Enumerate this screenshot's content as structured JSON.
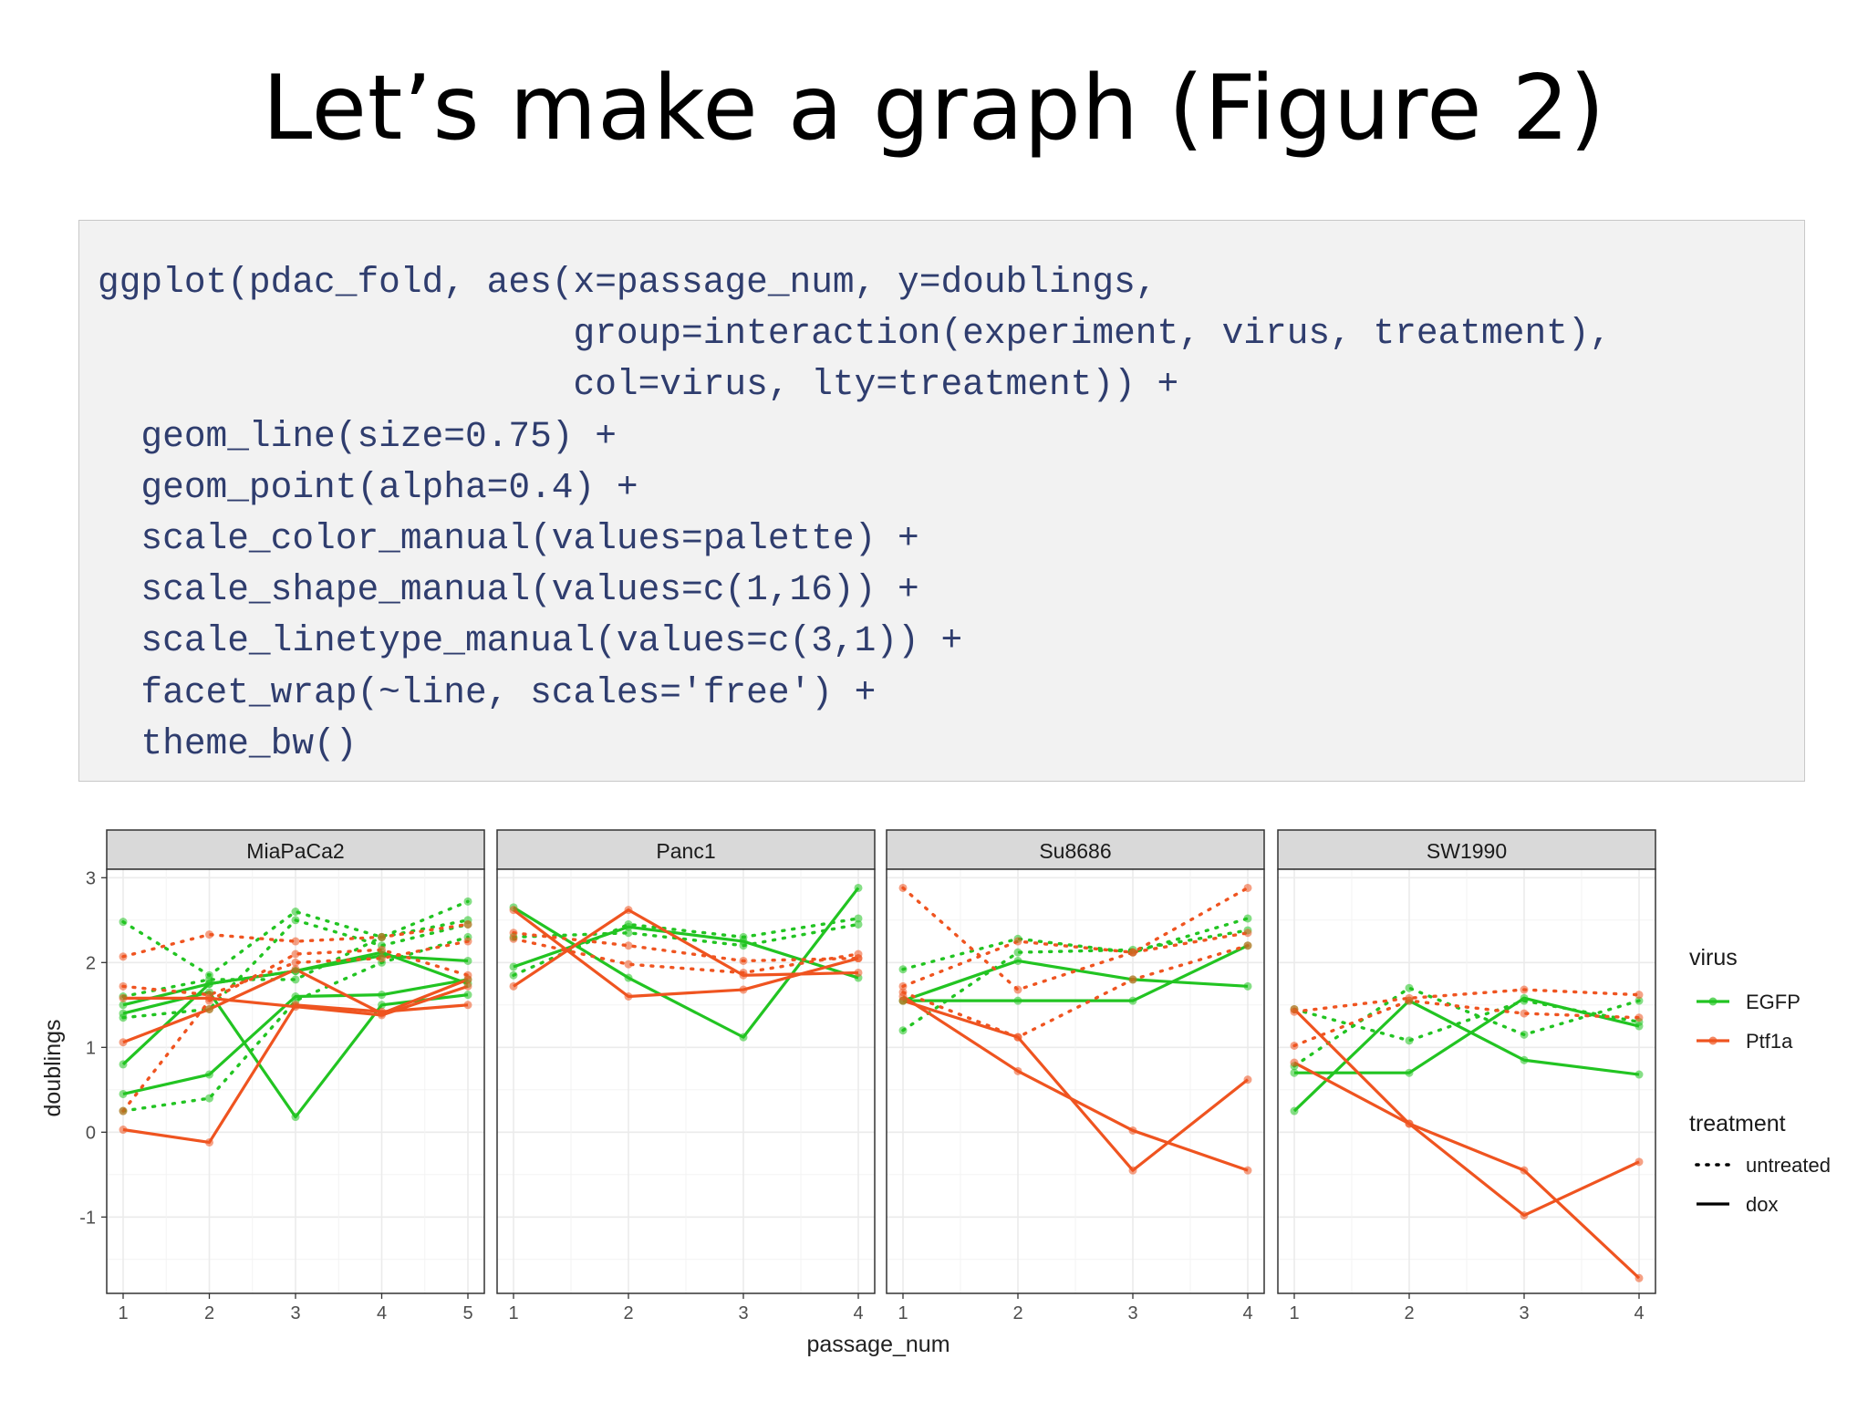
{
  "slide": {
    "title": "Let’s make a graph (Figure 2)",
    "code_lines": [
      "ggplot(pdac_fold, aes(x=passage_num, y=doublings,",
      "                      group=interaction(experiment, virus, treatment),",
      "                      col=virus, lty=treatment)) +",
      "  geom_line(size=0.75) +",
      "  geom_point(alpha=0.4) +",
      "  scale_color_manual(values=palette) +",
      "  scale_shape_manual(values=c(1,16)) +",
      "  scale_linetype_manual(values=c(3,1)) +",
      "  facet_wrap(~line, scales='free') +",
      "  theme_bw()"
    ]
  },
  "colors": {
    "EGFP": "#22c422",
    "Ptf1a": "#ef5420",
    "strip": "#d9d9d9",
    "grid": "#ebebeb"
  },
  "chart_data": {
    "type": "line",
    "xlabel": "passage_num",
    "ylabel": "doublings",
    "ylim": [
      -1.9,
      3.1
    ],
    "yticks": [
      -1,
      0,
      1,
      2,
      3
    ],
    "legend_placement": "right",
    "legend": {
      "color_title": "virus",
      "color_entries": [
        "EGFP",
        "Ptf1a"
      ],
      "linetype_title": "treatment",
      "linetype_entries": [
        "untreated",
        "dox"
      ]
    },
    "facets": [
      {
        "name": "MiaPaCa2",
        "x": [
          1,
          2,
          3,
          4,
          5
        ],
        "series": [
          {
            "virus": "EGFP",
            "treatment": "dox",
            "values": [
              0.45,
              0.68,
              1.6,
              1.62,
              1.8
            ]
          },
          {
            "virus": "EGFP",
            "treatment": "dox",
            "values": [
              1.4,
              1.65,
              0.18,
              1.5,
              1.62
            ]
          },
          {
            "virus": "EGFP",
            "treatment": "dox",
            "values": [
              0.8,
              1.75,
              1.9,
              2.12,
              1.75
            ]
          },
          {
            "virus": "EGFP",
            "treatment": "dox",
            "values": [
              1.5,
              1.75,
              1.9,
              2.08,
              2.02
            ]
          },
          {
            "virus": "EGFP",
            "treatment": "untreated",
            "values": [
              2.48,
              1.85,
              2.6,
              2.3,
              2.72
            ]
          },
          {
            "virus": "EGFP",
            "treatment": "untreated",
            "values": [
              0.25,
              0.4,
              1.55,
              2.0,
              2.3
            ]
          },
          {
            "virus": "EGFP",
            "treatment": "untreated",
            "values": [
              1.35,
              1.45,
              2.5,
              2.2,
              2.45
            ]
          },
          {
            "virus": "EGFP",
            "treatment": "untreated",
            "values": [
              1.6,
              1.8,
              1.8,
              2.3,
              2.5
            ]
          },
          {
            "virus": "Ptf1a",
            "treatment": "dox",
            "values": [
              0.03,
              -0.12,
              1.5,
              1.42,
              1.5
            ]
          },
          {
            "virus": "Ptf1a",
            "treatment": "dox",
            "values": [
              1.06,
              1.45,
              1.92,
              1.4,
              1.8
            ]
          },
          {
            "virus": "Ptf1a",
            "treatment": "dox",
            "values": [
              1.58,
              1.58,
              1.48,
              1.38,
              1.72
            ]
          },
          {
            "virus": "Ptf1a",
            "treatment": "untreated",
            "values": [
              2.07,
              2.33,
              2.25,
              2.3,
              2.45
            ]
          },
          {
            "virus": "Ptf1a",
            "treatment": "untreated",
            "values": [
              1.72,
              1.62,
              2.0,
              2.05,
              2.25
            ]
          },
          {
            "virus": "Ptf1a",
            "treatment": "untreated",
            "values": [
              0.25,
              1.55,
              2.1,
              2.15,
              1.85
            ]
          }
        ]
      },
      {
        "name": "Panc1",
        "x": [
          1,
          2,
          3,
          4
        ],
        "series": [
          {
            "virus": "EGFP",
            "treatment": "dox",
            "values": [
              2.65,
              1.82,
              1.12,
              2.88
            ]
          },
          {
            "virus": "EGFP",
            "treatment": "dox",
            "values": [
              1.95,
              2.42,
              2.25,
              1.82
            ]
          },
          {
            "virus": "EGFP",
            "treatment": "untreated",
            "values": [
              1.85,
              2.45,
              2.3,
              2.52
            ]
          },
          {
            "virus": "EGFP",
            "treatment": "untreated",
            "values": [
              2.3,
              2.35,
              2.2,
              2.45
            ]
          },
          {
            "virus": "Ptf1a",
            "treatment": "dox",
            "values": [
              2.62,
              1.6,
              1.68,
              2.05
            ]
          },
          {
            "virus": "Ptf1a",
            "treatment": "dox",
            "values": [
              1.72,
              2.62,
              1.85,
              1.88
            ]
          },
          {
            "virus": "Ptf1a",
            "treatment": "untreated",
            "values": [
              2.35,
              2.2,
              2.02,
              2.05
            ]
          },
          {
            "virus": "Ptf1a",
            "treatment": "untreated",
            "values": [
              2.28,
              1.98,
              1.88,
              2.1
            ]
          }
        ]
      },
      {
        "name": "Su8686",
        "x": [
          1,
          2,
          3,
          4
        ],
        "series": [
          {
            "virus": "EGFP",
            "treatment": "dox",
            "values": [
              1.55,
              1.55,
              1.55,
              2.2
            ]
          },
          {
            "virus": "EGFP",
            "treatment": "dox",
            "values": [
              1.55,
              2.02,
              1.8,
              1.72
            ]
          },
          {
            "virus": "EGFP",
            "treatment": "untreated",
            "values": [
              1.92,
              2.28,
              2.12,
              2.52
            ]
          },
          {
            "virus": "EGFP",
            "treatment": "untreated",
            "values": [
              1.2,
              2.12,
              2.15,
              2.38
            ]
          },
          {
            "virus": "Ptf1a",
            "treatment": "dox",
            "values": [
              1.6,
              0.72,
              0.02,
              -0.45
            ]
          },
          {
            "virus": "Ptf1a",
            "treatment": "dox",
            "values": [
              1.55,
              1.12,
              -0.45,
              0.62
            ]
          },
          {
            "virus": "Ptf1a",
            "treatment": "untreated",
            "values": [
              2.88,
              1.68,
              2.12,
              2.88
            ]
          },
          {
            "virus": "Ptf1a",
            "treatment": "untreated",
            "values": [
              1.72,
              2.25,
              2.12,
              2.35
            ]
          },
          {
            "virus": "Ptf1a",
            "treatment": "untreated",
            "values": [
              1.65,
              1.12,
              1.8,
              2.2
            ]
          }
        ]
      },
      {
        "name": "SW1990",
        "x": [
          1,
          2,
          3,
          4
        ],
        "series": [
          {
            "virus": "EGFP",
            "treatment": "dox",
            "values": [
              0.25,
              1.55,
              0.85,
              0.68
            ]
          },
          {
            "virus": "EGFP",
            "treatment": "dox",
            "values": [
              0.7,
              0.7,
              1.58,
              1.25
            ]
          },
          {
            "virus": "EGFP",
            "treatment": "untreated",
            "values": [
              0.78,
              1.7,
              1.15,
              1.55
            ]
          },
          {
            "virus": "EGFP",
            "treatment": "untreated",
            "values": [
              1.45,
              1.08,
              1.55,
              1.3
            ]
          },
          {
            "virus": "Ptf1a",
            "treatment": "dox",
            "values": [
              1.45,
              0.1,
              -0.98,
              -0.35
            ]
          },
          {
            "virus": "Ptf1a",
            "treatment": "dox",
            "values": [
              0.82,
              0.1,
              -0.45,
              -1.72
            ]
          },
          {
            "virus": "Ptf1a",
            "treatment": "untreated",
            "values": [
              1.42,
              1.58,
              1.68,
              1.62
            ]
          },
          {
            "virus": "Ptf1a",
            "treatment": "untreated",
            "values": [
              1.02,
              1.55,
              1.4,
              1.35
            ]
          }
        ]
      }
    ]
  }
}
